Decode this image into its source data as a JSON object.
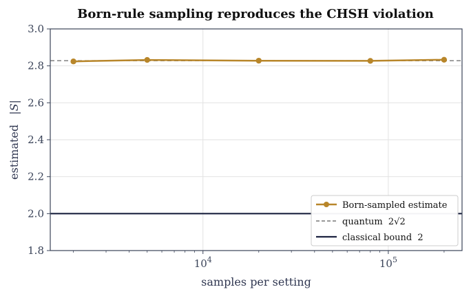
{
  "chart_data": {
    "type": "line",
    "title": "Born-rule sampling reproduces the CHSH violation",
    "xlabel": "samples per setting",
    "ylabel": "estimated",
    "ylabel_math": "|S|",
    "xscale": "log",
    "xlim": [
      1500,
      250000
    ],
    "ylim": [
      1.8,
      3.0
    ],
    "yticks": [
      "1.8",
      "2.0",
      "2.2",
      "2.4",
      "2.6",
      "2.8",
      "3.0"
    ],
    "xticks": [
      {
        "value": 10000,
        "base": "10",
        "exp": "4"
      },
      {
        "value": 100000,
        "base": "10",
        "exp": "5"
      }
    ],
    "grid": true,
    "legend_position": "lower-right",
    "series": [
      {
        "name": "Born-sampled estimate",
        "x": [
          2000,
          5000,
          20000,
          80000,
          200000
        ],
        "y": [
          2.824,
          2.832,
          2.828,
          2.827,
          2.833
        ],
        "color": "#b8862a"
      }
    ],
    "reference_lines": [
      {
        "name": "quantum",
        "label_math": "2√2",
        "y": 2.828,
        "style": "dashed",
        "color": "#8a8a8a"
      },
      {
        "name": "classical bound",
        "label_math": "2",
        "y": 2.0,
        "style": "solid",
        "color": "#1c2340"
      }
    ]
  }
}
